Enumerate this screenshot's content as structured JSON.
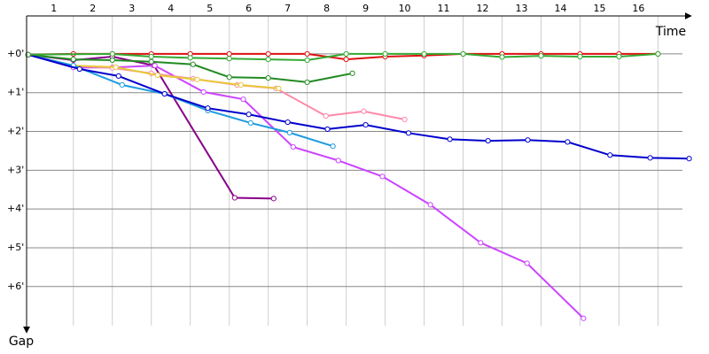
{
  "chart_data": {
    "type": "line",
    "x_label": "Time",
    "y_label": "Gap",
    "xlim": [
      -0.2,
      16.9
    ],
    "ylim": [
      -0.98,
      7.1
    ],
    "y_inverted": true,
    "grid": true,
    "xticks": [
      {
        "value": 0.5,
        "label": "1"
      },
      {
        "value": 1.5,
        "label": "2"
      },
      {
        "value": 2.5,
        "label": "3"
      },
      {
        "value": 3.5,
        "label": "4"
      },
      {
        "value": 4.5,
        "label": "5"
      },
      {
        "value": 5.5,
        "label": "6"
      },
      {
        "value": 6.5,
        "label": "7"
      },
      {
        "value": 7.5,
        "label": "8"
      },
      {
        "value": 8.5,
        "label": "9"
      },
      {
        "value": 9.5,
        "label": "10"
      },
      {
        "value": 10.5,
        "label": "11"
      },
      {
        "value": 11.5,
        "label": "12"
      },
      {
        "value": 12.5,
        "label": "13"
      },
      {
        "value": 13.5,
        "label": "14"
      },
      {
        "value": 14.5,
        "label": "15"
      },
      {
        "value": 15.5,
        "label": "16"
      }
    ],
    "yticks": [
      {
        "value": 0,
        "label": "+0'"
      },
      {
        "value": 1,
        "label": "+1'"
      },
      {
        "value": 2,
        "label": "+2'"
      },
      {
        "value": 3,
        "label": "+3'"
      },
      {
        "value": 4,
        "label": "+4'"
      },
      {
        "value": 5,
        "label": "+5'"
      },
      {
        "value": 6,
        "label": "+6'"
      }
    ],
    "series": [
      {
        "color": "#880088",
        "x": [
          -0.16,
          1,
          2,
          3.07,
          5.14,
          6.14
        ],
        "values": [
          0.02,
          0.16,
          0.07,
          0.3,
          3.71,
          3.73
        ]
      },
      {
        "color": "#cc44ff",
        "x": [
          -0.16,
          1,
          2,
          3.09,
          4.34,
          5.36,
          6.64,
          7.8,
          8.93,
          10.16,
          11.45,
          12.64,
          14.09
        ],
        "values": [
          0.02,
          0.35,
          0.35,
          0.3,
          0.98,
          1.17,
          2.4,
          2.75,
          3.16,
          3.89,
          4.87,
          5.4,
          6.82
        ]
      },
      {
        "color": "#ff88aa",
        "x": [
          -0.16,
          1,
          2,
          3,
          4.07,
          5.2,
          6.2,
          7.48,
          8.45,
          9.5
        ],
        "values": [
          0.02,
          0.3,
          0.36,
          0.5,
          0.64,
          0.8,
          0.89,
          1.6,
          1.48,
          1.69
        ]
      },
      {
        "color": "#e8c93a",
        "x": [
          -0.16,
          1,
          2.09,
          3.16,
          4.18,
          5.3,
          6.27
        ],
        "values": [
          0.02,
          0.3,
          0.34,
          0.55,
          0.66,
          0.8,
          0.89
        ]
      },
      {
        "color": "#1e9be0",
        "x": [
          -0.16,
          1,
          2.25,
          3.34,
          4.45,
          5.55,
          6.55,
          7.66
        ],
        "values": [
          0.02,
          0.3,
          0.8,
          1.03,
          1.46,
          1.78,
          2.03,
          2.38
        ]
      },
      {
        "color": "#228b22",
        "x": [
          -0.16,
          1,
          2,
          3,
          4.07,
          5,
          6,
          7,
          8.16
        ],
        "values": [
          0.02,
          0.14,
          0.16,
          0.2,
          0.27,
          0.6,
          0.62,
          0.73,
          0.5
        ]
      },
      {
        "color": "#0000cc",
        "x": [
          -0.16,
          1.16,
          2.16,
          3.34,
          4.45,
          5.5,
          6.5,
          7.52,
          8.5,
          9.6,
          10.66,
          11.64,
          12.66,
          13.68,
          14.77,
          15.8,
          16.8
        ],
        "values": [
          0.02,
          0.39,
          0.57,
          1.03,
          1.4,
          1.56,
          1.76,
          1.94,
          1.83,
          2.04,
          2.2,
          2.24,
          2.22,
          2.27,
          2.61,
          2.68,
          2.7
        ]
      },
      {
        "color": "#dd1111",
        "x": [
          -0.16,
          1,
          2,
          3,
          4,
          5,
          6,
          7,
          8,
          9,
          10,
          11,
          12,
          13,
          14,
          15,
          16
        ],
        "values": [
          0.02,
          0,
          0,
          0,
          0,
          0,
          0,
          0,
          0.14,
          0.07,
          0.04,
          0,
          0,
          0,
          0,
          0,
          0
        ]
      },
      {
        "color": "#33aa33",
        "x": [
          -0.16,
          2,
          3,
          4,
          5,
          6,
          7,
          8,
          9,
          10,
          11,
          12,
          13,
          14,
          15,
          16
        ],
        "values": [
          0.02,
          0,
          0.07,
          0.1,
          0.12,
          0.14,
          0.16,
          0,
          0,
          0,
          0,
          0.08,
          0.05,
          0.07,
          0.07,
          0
        ]
      }
    ]
  }
}
